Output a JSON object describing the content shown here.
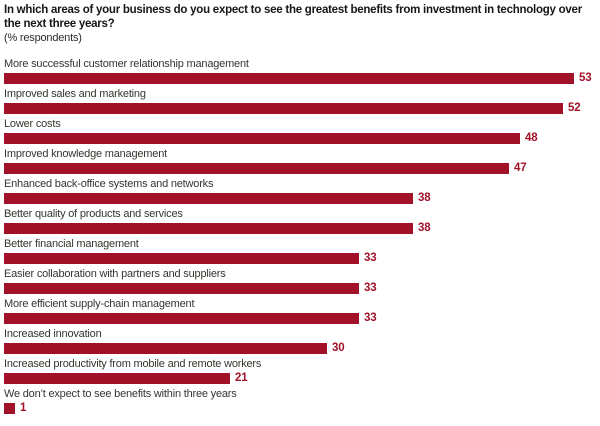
{
  "chart_data": {
    "type": "bar",
    "orientation": "horizontal",
    "title": "In which areas of your business do you expect to see the greatest benefits from investment in technology over the next three years?",
    "subtitle": "(% respondents)",
    "categories": [
      "More successful customer relationship management",
      "Improved sales and marketing",
      "Lower costs",
      "Improved knowledge management",
      "Enhanced back-office systems and networks",
      "Better quality of products and services",
      "Better financial management",
      "Easier collaboration with partners and suppliers",
      "More efficient supply-chain management",
      "Increased innovation",
      "Increased productivity from mobile and remote workers",
      "We don’t expect to see benefits within three years"
    ],
    "values": [
      53,
      52,
      48,
      47,
      38,
      38,
      33,
      33,
      33,
      30,
      21,
      1
    ],
    "xlim": [
      0,
      53
    ],
    "value_labels_shown": true,
    "grid": false,
    "legend": false,
    "bar_color": "#a11228",
    "value_label_color": "#a11228",
    "title_color": "#161616",
    "category_label_color": "#38342f",
    "background_color": "#ffffff"
  }
}
